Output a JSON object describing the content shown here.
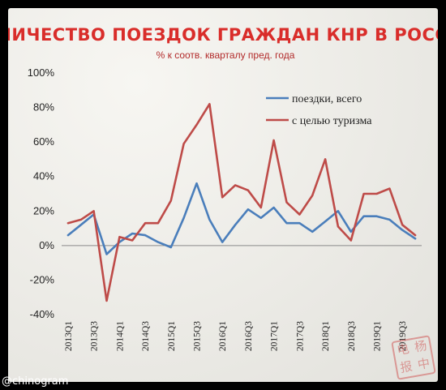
{
  "chart_data": {
    "type": "line",
    "title": "КОЛИЧЕСТВО ПОЕЗДОК ГРАЖДАН КНР В РОССИЮ",
    "subtitle": "% к соотв. кварталу пред. года",
    "x": [
      "2013Q1",
      "2013Q2",
      "2013Q3",
      "2013Q4",
      "2014Q1",
      "2014Q2",
      "2014Q3",
      "2014Q4",
      "2015Q1",
      "2015Q2",
      "2015Q3",
      "2015Q4",
      "2016Q1",
      "2016Q2",
      "2016Q3",
      "2016Q4",
      "2017Q1",
      "2017Q2",
      "2017Q3",
      "2017Q4",
      "2018Q1",
      "2018Q2",
      "2018Q3",
      "2018Q4",
      "2019Q1",
      "2019Q2",
      "2019Q3",
      "2019Q4"
    ],
    "x_tick_labels": [
      "2013Q1",
      "2013Q3",
      "2014Q1",
      "2014Q3",
      "2015Q1",
      "2015Q3",
      "2016Q1",
      "2016Q3",
      "2017Q1",
      "2017Q3",
      "2018Q1",
      "2018Q3",
      "2019Q1",
      "2019Q3"
    ],
    "yticks": [
      "100%",
      "80%",
      "60%",
      "40%",
      "20%",
      "0%",
      "-20%",
      "-40%"
    ],
    "ylim": [
      -40,
      100
    ],
    "grid": false,
    "legend_position": "top-right",
    "series": [
      {
        "name": "поездки, всего",
        "color": "#4a7ebb",
        "values": [
          6,
          12,
          18,
          -5,
          2,
          7,
          6,
          2,
          -1,
          16,
          36,
          15,
          2,
          12,
          21,
          16,
          22,
          13,
          13,
          8,
          14,
          20,
          8,
          17,
          17,
          15,
          9,
          4
        ]
      },
      {
        "name": "с целью туризма",
        "color": "#be4b48",
        "values": [
          13,
          15,
          20,
          -32,
          5,
          3,
          13,
          13,
          26,
          59,
          70,
          82,
          28,
          35,
          32,
          22,
          61,
          25,
          18,
          29,
          50,
          11,
          3,
          30,
          30,
          33,
          12,
          6
        ]
      }
    ]
  },
  "watermark": "@chinogram",
  "stamp": {
    "chars": [
      "电",
      "杨",
      "报",
      "中"
    ]
  }
}
